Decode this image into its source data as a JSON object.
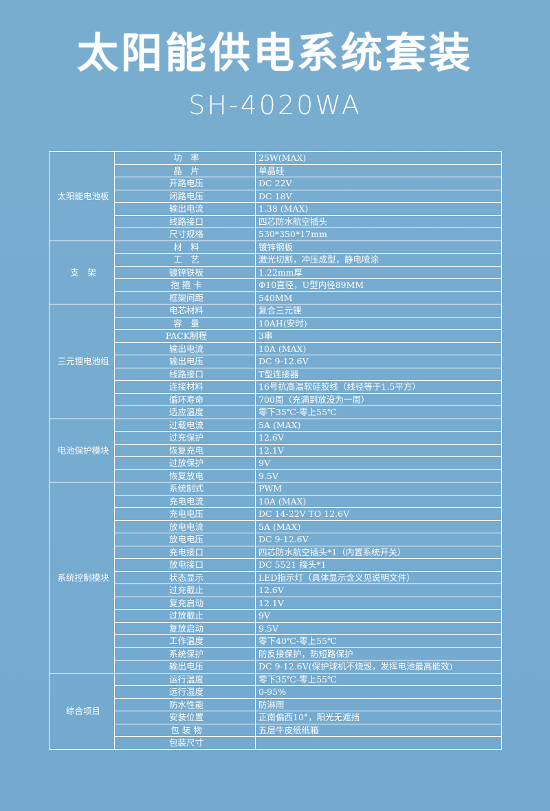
{
  "title": "太阳能供电系统套装",
  "subtitle": "SH-4020WA",
  "groups": [
    {
      "name": "太阳能电池板",
      "rows": [
        [
          "功　率",
          "25W(MAX)"
        ],
        [
          "晶　片",
          "单晶硅"
        ],
        [
          "开路电压",
          "DC 22V"
        ],
        [
          "闭路电压",
          "DC 18V"
        ],
        [
          "输出电流",
          "1.38 (MAX)"
        ],
        [
          "线路接口",
          "四芯防水航空插头"
        ],
        [
          "尺寸规格",
          "530*350*17mm"
        ]
      ]
    },
    {
      "name": "支　架",
      "rows": [
        [
          "材　料",
          "镀锌钢板"
        ],
        [
          "工　艺",
          "激光切割，冲压成型，静电喷涂"
        ],
        [
          "镀锌铁板",
          "1.22mm厚"
        ],
        [
          "抱 箍 卡",
          "Φ10直径，U型内径89MM"
        ],
        [
          "框架间距",
          "540MM"
        ]
      ]
    },
    {
      "name": "三元锂电池组",
      "rows": [
        [
          "电芯材料",
          "复合三元锂"
        ],
        [
          "容　量",
          "10AH(安时)"
        ],
        [
          "PACK制程",
          "3串"
        ],
        [
          "输出电流",
          "10A (MAX)"
        ],
        [
          "输出电压",
          "DC 9-12.6V"
        ],
        [
          "线路接口",
          "T型连接器"
        ],
        [
          "连接材料",
          "16号抗高温软硅胶线（线径等于1.5平方）"
        ],
        [
          "循环寿命",
          "700周（充满到放没为一周）"
        ],
        [
          "适应温度",
          "零下35℃-零上55℃"
        ]
      ]
    },
    {
      "name": "电池保护模块",
      "rows": [
        [
          "过载电流",
          "5A (MAX)"
        ],
        [
          "过充保护",
          "12.6V"
        ],
        [
          "恢复充电",
          "12.1V"
        ],
        [
          "过放保护",
          "9V"
        ],
        [
          "恢复放电",
          "9.5V"
        ]
      ]
    },
    {
      "name": "系统控制模块",
      "rows": [
        [
          "系统制式",
          "PWM"
        ],
        [
          "充电电流",
          "10A (MAX)"
        ],
        [
          "充电电压",
          "DC 14-22V TO 12.6V"
        ],
        [
          "放电电流",
          "5A (MAX)"
        ],
        [
          "放电电压",
          "DC 9-12.6V"
        ],
        [
          "充电接口",
          "四芯防水航空插头*1（内置系统开关）"
        ],
        [
          "放电接口",
          "DC 5521 接头*1"
        ],
        [
          "状态显示",
          "LED指示灯（具体显示含义见说明文件）"
        ],
        [
          "过充截止",
          "12.6V"
        ],
        [
          "复充启动",
          "12.1V"
        ],
        [
          "过放截止",
          "9V"
        ],
        [
          "复放启动",
          "9.5V"
        ],
        [
          "工作温度",
          "零下40℃-零上55℃"
        ],
        [
          "系统保护",
          "防反接保护，防短路保护"
        ],
        [
          "输出电压",
          "DC 9-12.6V(保护球机不烧毁，发挥电池最高能效)"
        ]
      ]
    },
    {
      "name": "综合项目",
      "rows": [
        [
          "运行温度",
          "零下35℃-零上55℃"
        ],
        [
          "运行湿度",
          "0-95%"
        ],
        [
          "防水性能",
          "防淋雨"
        ],
        [
          "安装位置",
          "正南偏西10°，阳光无遮挡"
        ],
        [
          "包 装 物",
          "五层牛皮纸纸箱"
        ],
        [
          "包装尺寸",
          ""
        ]
      ]
    }
  ]
}
